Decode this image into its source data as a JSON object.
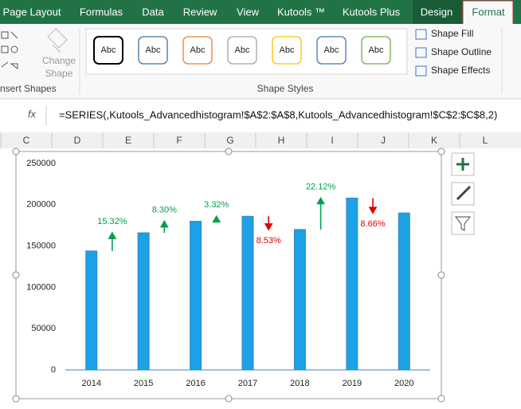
{
  "ribbon": {
    "tabs": [
      "Page Layout",
      "Formulas",
      "Data",
      "Review",
      "View",
      "Kutools ™",
      "Kutools Plus",
      "Design",
      "Format"
    ],
    "change_shape": [
      "Change",
      "Shape"
    ],
    "style_samples": [
      "Abc",
      "Abc",
      "Abc",
      "Abc",
      "Abc",
      "Abc",
      "Abc"
    ],
    "shape_commands": [
      "Shape Fill",
      "Shape Outline",
      "Shape Effects"
    ],
    "groups": [
      "nsert Shapes",
      "Shape Styles"
    ]
  },
  "formula_bar": {
    "fx": "fx",
    "formula": "=SERIES(,Kutools_Advancedhistogram!$A$2:$A$8,Kutools_Advancedhistogram!$C$2:$C$8,2)"
  },
  "columns": [
    "C",
    "D",
    "E",
    "F",
    "G",
    "H",
    "I",
    "J",
    "K",
    "L"
  ],
  "chart_data": {
    "type": "bar",
    "categories": [
      "2014",
      "2015",
      "2016",
      "2017",
      "2018",
      "2019",
      "2020"
    ],
    "values": [
      144000,
      166000,
      180000,
      186000,
      170000,
      208000,
      190000
    ],
    "color": "#1ba1e6",
    "changes": [
      null,
      15.32,
      8.3,
      3.32,
      -8.53,
      22.12,
      -8.66
    ],
    "change_labels": [
      null,
      "15.32%",
      "8.30%",
      "3.32%",
      "8.53%",
      "22.12%",
      "8.66%"
    ],
    "up_color": "#00a050",
    "down_color": "#e00000",
    "ylim": [
      0,
      250000
    ],
    "yticks": [
      0,
      50000,
      100000,
      150000,
      200000,
      250000
    ],
    "grid": false
  }
}
